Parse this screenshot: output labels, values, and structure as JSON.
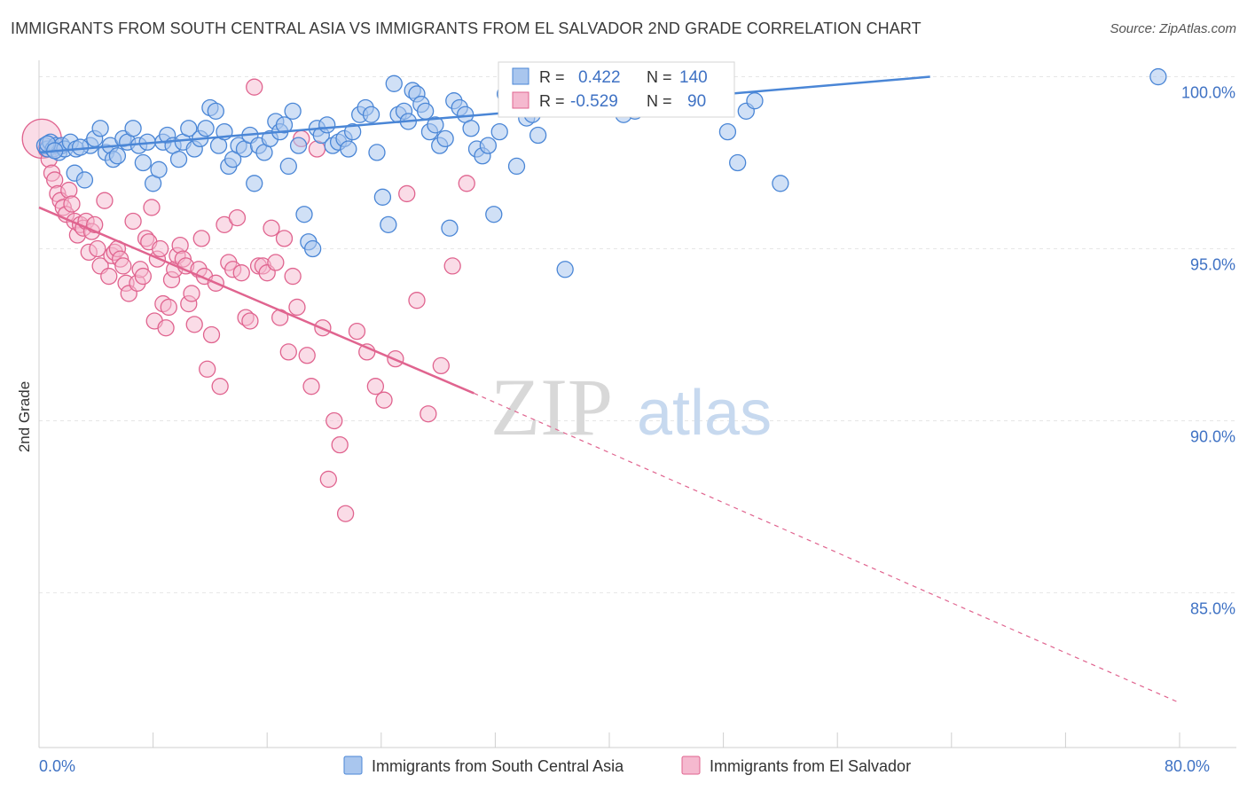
{
  "title": "IMMIGRANTS FROM SOUTH CENTRAL ASIA VS IMMIGRANTS FROM EL SALVADOR 2ND GRADE CORRELATION CHART",
  "source": "Source: ZipAtlas.com",
  "watermark": {
    "zip": "ZIP",
    "atlas": "atlas"
  },
  "colors": {
    "blue": "#4a86d6",
    "blue_fill": "#a9c6ee",
    "pink": "#e0648f",
    "pink_fill": "#f5b9cf",
    "tick_text": "#3f72c4"
  },
  "chart_data": {
    "type": "scatter",
    "xlabel": "",
    "ylabel": "2nd Grade",
    "xlim": [
      0,
      80
    ],
    "ylim": [
      80.5,
      101.2
    ],
    "x_tick_labels": [
      {
        "value": 0,
        "label": "0.0%"
      },
      {
        "value": 80,
        "label": "80.0%"
      }
    ],
    "y_ticks": [
      {
        "value": 100,
        "label": "100.0%"
      },
      {
        "value": 95,
        "label": "95.0%"
      },
      {
        "value": 90,
        "label": "90.0%"
      },
      {
        "value": 85,
        "label": "85.0%"
      }
    ],
    "grid": true,
    "legend_position": "top-center",
    "series": [
      {
        "name": "Immigrants from South Central Asia",
        "color": "#4a86d6",
        "R": "0.422",
        "N": "140",
        "trend": {
          "x0": 0,
          "y0": 97.8,
          "x1": 62.5,
          "y1": 100.0,
          "dashed_to": null
        },
        "points": [
          [
            0.4,
            98.0
          ],
          [
            0.6,
            97.9
          ],
          [
            0.8,
            98.1
          ],
          [
            1.0,
            97.9
          ],
          [
            1.2,
            98.0
          ],
          [
            1.4,
            97.8
          ],
          [
            1.6,
            98.0
          ],
          [
            1.8,
            97.9
          ],
          [
            2.2,
            98.1
          ],
          [
            2.6,
            97.9
          ],
          [
            2.5,
            97.2
          ],
          [
            3.2,
            97.0
          ],
          [
            3.6,
            98.0
          ],
          [
            3.9,
            98.2
          ],
          [
            4.3,
            98.5
          ],
          [
            4.7,
            97.8
          ],
          [
            5.0,
            98.0
          ],
          [
            5.2,
            97.6
          ],
          [
            5.5,
            97.7
          ],
          [
            5.9,
            98.2
          ],
          [
            6.2,
            98.1
          ],
          [
            6.6,
            98.5
          ],
          [
            7.0,
            98.0
          ],
          [
            7.3,
            97.5
          ],
          [
            7.6,
            98.1
          ],
          [
            8.0,
            96.9
          ],
          [
            8.4,
            97.3
          ],
          [
            8.7,
            98.1
          ],
          [
            9.0,
            98.3
          ],
          [
            9.4,
            98.0
          ],
          [
            9.8,
            97.6
          ],
          [
            10.1,
            98.1
          ],
          [
            10.5,
            98.5
          ],
          [
            10.9,
            97.9
          ],
          [
            11.3,
            98.2
          ],
          [
            11.7,
            98.5
          ],
          [
            12.0,
            99.1
          ],
          [
            12.4,
            99.0
          ],
          [
            12.6,
            98.0
          ],
          [
            13.0,
            98.4
          ],
          [
            13.3,
            97.4
          ],
          [
            13.6,
            97.6
          ],
          [
            14.0,
            98.0
          ],
          [
            14.4,
            97.9
          ],
          [
            14.8,
            98.3
          ],
          [
            15.1,
            96.9
          ],
          [
            15.4,
            98.0
          ],
          [
            15.8,
            97.8
          ],
          [
            16.2,
            98.2
          ],
          [
            16.6,
            98.7
          ],
          [
            16.9,
            98.4
          ],
          [
            17.2,
            98.6
          ],
          [
            17.5,
            97.4
          ],
          [
            17.8,
            99.0
          ],
          [
            18.2,
            98.0
          ],
          [
            18.6,
            96.0
          ],
          [
            18.9,
            95.2
          ],
          [
            19.2,
            95.0
          ],
          [
            19.5,
            98.5
          ],
          [
            19.8,
            98.3
          ],
          [
            20.2,
            98.6
          ],
          [
            20.6,
            98.0
          ],
          [
            21.0,
            98.1
          ],
          [
            21.4,
            98.2
          ],
          [
            21.7,
            97.9
          ],
          [
            22.0,
            98.4
          ],
          [
            22.5,
            98.9
          ],
          [
            22.9,
            99.1
          ],
          [
            23.3,
            98.9
          ],
          [
            23.7,
            97.8
          ],
          [
            24.1,
            96.5
          ],
          [
            24.5,
            95.7
          ],
          [
            24.9,
            99.8
          ],
          [
            25.2,
            98.9
          ],
          [
            25.6,
            99.0
          ],
          [
            25.9,
            98.7
          ],
          [
            26.2,
            99.6
          ],
          [
            26.5,
            99.5
          ],
          [
            26.8,
            99.2
          ],
          [
            27.1,
            99.0
          ],
          [
            27.4,
            98.4
          ],
          [
            27.8,
            98.6
          ],
          [
            28.1,
            98.0
          ],
          [
            28.5,
            98.2
          ],
          [
            28.8,
            95.6
          ],
          [
            29.1,
            99.3
          ],
          [
            29.5,
            99.1
          ],
          [
            29.9,
            98.9
          ],
          [
            30.3,
            98.5
          ],
          [
            30.7,
            97.9
          ],
          [
            31.1,
            97.7
          ],
          [
            31.5,
            98.0
          ],
          [
            31.9,
            96.0
          ],
          [
            32.3,
            98.4
          ],
          [
            32.7,
            99.5
          ],
          [
            33.1,
            99.4
          ],
          [
            33.5,
            97.4
          ],
          [
            33.9,
            99.8
          ],
          [
            34.2,
            98.8
          ],
          [
            34.6,
            98.9
          ],
          [
            35.0,
            98.3
          ],
          [
            35.4,
            99.4
          ],
          [
            35.8,
            99.2
          ],
          [
            36.1,
            99.6
          ],
          [
            36.5,
            99.7
          ],
          [
            36.9,
            94.4
          ],
          [
            37.4,
            99.3
          ],
          [
            37.8,
            99.6
          ],
          [
            38.2,
            99.9
          ],
          [
            38.5,
            100.0
          ],
          [
            38.9,
            100.0
          ],
          [
            39.3,
            100.0
          ],
          [
            39.6,
            100.0
          ],
          [
            40.0,
            99.5
          ],
          [
            40.5,
            99.9
          ],
          [
            41.0,
            98.9
          ],
          [
            41.4,
            99.2
          ],
          [
            41.8,
            99.0
          ],
          [
            42.2,
            99.3
          ],
          [
            42.7,
            99.4
          ],
          [
            43.1,
            99.5
          ],
          [
            43.6,
            99.6
          ],
          [
            44.0,
            99.7
          ],
          [
            44.5,
            99.8
          ],
          [
            45.0,
            100.0
          ],
          [
            45.4,
            100.0
          ],
          [
            45.9,
            99.9
          ],
          [
            46.3,
            99.8
          ],
          [
            46.8,
            99.6
          ],
          [
            47.3,
            99.5
          ],
          [
            47.8,
            99.7
          ],
          [
            48.3,
            98.4
          ],
          [
            49.0,
            97.5
          ],
          [
            49.6,
            99.0
          ],
          [
            50.2,
            99.3
          ],
          [
            52.0,
            96.9
          ],
          [
            78.5,
            100.0
          ],
          [
            0.6,
            98.05
          ],
          [
            1.1,
            97.85
          ],
          [
            2.9,
            97.95
          ]
        ]
      },
      {
        "name": "Immigrants from El Salvador",
        "color": "#e0648f",
        "R": "-0.529",
        "N": "90",
        "trend": {
          "x0": 0,
          "y0": 96.2,
          "x1": 30.5,
          "y1": 90.8,
          "dashed_to": [
            80.0,
            81.8
          ]
        },
        "points": [
          [
            0.2,
            98.2
          ],
          [
            0.5,
            97.9
          ],
          [
            0.7,
            97.6
          ],
          [
            0.9,
            97.2
          ],
          [
            1.1,
            97.0
          ],
          [
            1.3,
            96.6
          ],
          [
            1.5,
            96.4
          ],
          [
            1.7,
            96.2
          ],
          [
            1.9,
            96.0
          ],
          [
            2.1,
            96.7
          ],
          [
            2.3,
            96.3
          ],
          [
            2.5,
            95.8
          ],
          [
            2.7,
            95.4
          ],
          [
            2.9,
            95.7
          ],
          [
            3.1,
            95.6
          ],
          [
            3.3,
            95.8
          ],
          [
            3.5,
            94.9
          ],
          [
            3.7,
            95.5
          ],
          [
            3.9,
            95.7
          ],
          [
            4.1,
            95.0
          ],
          [
            4.3,
            94.5
          ],
          [
            4.6,
            96.4
          ],
          [
            4.9,
            94.2
          ],
          [
            5.1,
            94.8
          ],
          [
            5.3,
            94.9
          ],
          [
            5.5,
            95.0
          ],
          [
            5.7,
            94.7
          ],
          [
            5.9,
            94.5
          ],
          [
            6.1,
            94.0
          ],
          [
            6.3,
            93.7
          ],
          [
            6.6,
            95.8
          ],
          [
            6.9,
            94.0
          ],
          [
            7.1,
            94.4
          ],
          [
            7.3,
            94.2
          ],
          [
            7.5,
            95.3
          ],
          [
            7.7,
            95.2
          ],
          [
            7.9,
            96.2
          ],
          [
            8.1,
            92.9
          ],
          [
            8.3,
            94.7
          ],
          [
            8.5,
            95.0
          ],
          [
            8.7,
            93.4
          ],
          [
            8.9,
            92.7
          ],
          [
            9.1,
            93.3
          ],
          [
            9.3,
            94.1
          ],
          [
            9.5,
            94.4
          ],
          [
            9.7,
            94.8
          ],
          [
            9.9,
            95.1
          ],
          [
            10.1,
            94.7
          ],
          [
            10.3,
            94.5
          ],
          [
            10.5,
            93.4
          ],
          [
            10.7,
            93.7
          ],
          [
            10.9,
            92.8
          ],
          [
            11.2,
            94.4
          ],
          [
            11.4,
            95.3
          ],
          [
            11.6,
            94.2
          ],
          [
            11.8,
            91.5
          ],
          [
            12.1,
            92.5
          ],
          [
            12.4,
            94.0
          ],
          [
            12.7,
            91.0
          ],
          [
            13.0,
            95.7
          ],
          [
            13.3,
            94.6
          ],
          [
            13.6,
            94.4
          ],
          [
            13.9,
            95.9
          ],
          [
            14.2,
            94.3
          ],
          [
            14.5,
            93.0
          ],
          [
            14.8,
            92.9
          ],
          [
            15.1,
            99.7
          ],
          [
            15.4,
            94.5
          ],
          [
            15.7,
            94.5
          ],
          [
            16.0,
            94.3
          ],
          [
            16.3,
            95.6
          ],
          [
            16.6,
            94.6
          ],
          [
            16.9,
            93.0
          ],
          [
            17.2,
            95.3
          ],
          [
            17.5,
            92.0
          ],
          [
            17.8,
            94.2
          ],
          [
            18.1,
            93.3
          ],
          [
            18.4,
            98.2
          ],
          [
            18.8,
            91.9
          ],
          [
            19.1,
            91.0
          ],
          [
            19.5,
            97.9
          ],
          [
            19.9,
            92.7
          ],
          [
            20.3,
            88.3
          ],
          [
            20.7,
            90.0
          ],
          [
            21.1,
            89.3
          ],
          [
            21.5,
            87.3
          ],
          [
            22.3,
            92.6
          ],
          [
            23.0,
            92.0
          ],
          [
            23.6,
            91.0
          ],
          [
            24.2,
            90.6
          ],
          [
            25.0,
            91.8
          ],
          [
            25.8,
            96.6
          ],
          [
            26.5,
            93.5
          ],
          [
            27.3,
            90.2
          ],
          [
            28.2,
            91.6
          ],
          [
            29.0,
            94.5
          ],
          [
            30.0,
            96.9
          ]
        ]
      }
    ]
  },
  "legend": {
    "r_label": "R =",
    "n_label": "N =",
    "items": [
      {
        "name": "Immigrants from South Central Asia",
        "r": "0.422",
        "n": "140"
      },
      {
        "name": "Immigrants from El Salvador",
        "r": "-0.529",
        "n": "90"
      }
    ]
  }
}
